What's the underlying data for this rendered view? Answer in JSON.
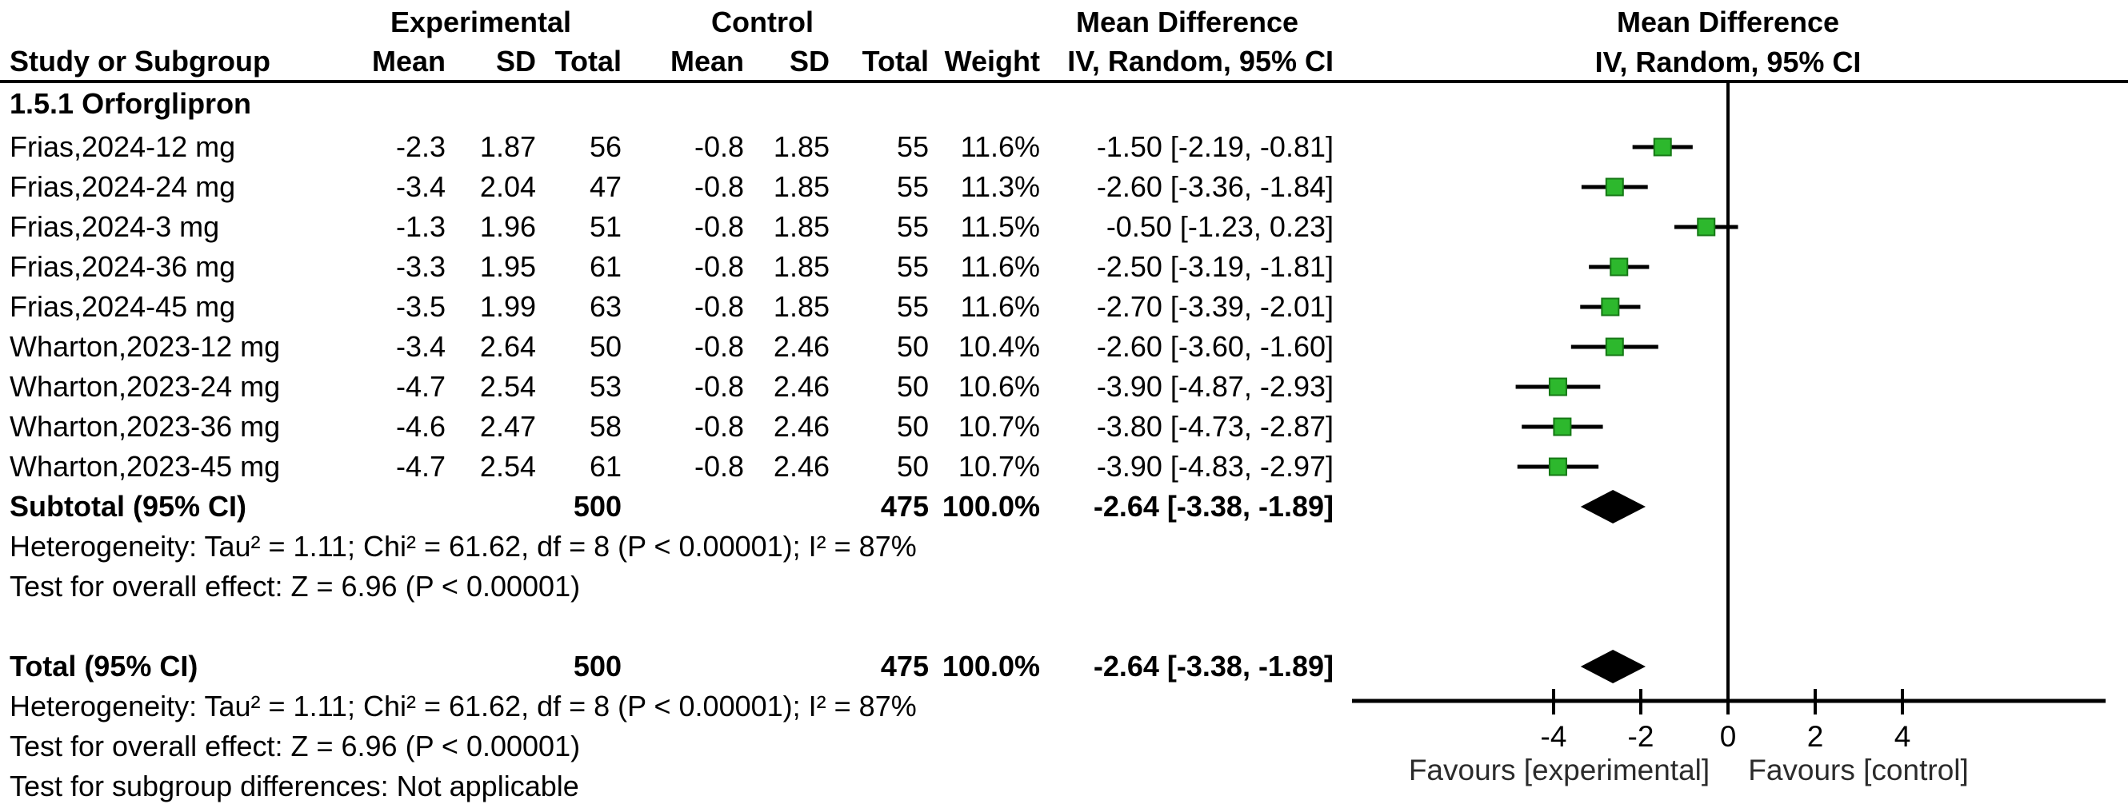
{
  "header": {
    "group_experimental": "Experimental",
    "group_control": "Control",
    "group_md_table": "Mean Difference",
    "group_md_plot": "Mean Difference",
    "col_study": "Study or Subgroup",
    "col_exp_mean": "Mean",
    "col_exp_sd": "SD",
    "col_exp_total": "Total",
    "col_ctl_mean": "Mean",
    "col_ctl_sd": "SD",
    "col_ctl_total": "Total",
    "col_weight": "Weight",
    "col_ci_table": "IV, Random, 95% CI",
    "col_ci_plot": "IV, Random, 95% CI"
  },
  "subgroup_label": "1.5.1 Orforglipron",
  "studies": [
    {
      "name": "Frias,2024-12 mg",
      "exp_mean": "-2.3",
      "exp_sd": "1.87",
      "exp_total": "56",
      "ctl_mean": "-0.8",
      "ctl_sd": "1.85",
      "ctl_total": "55",
      "weight": "11.6%",
      "ci_text": "-1.50 [-2.19, -0.81]"
    },
    {
      "name": "Frias,2024-24 mg",
      "exp_mean": "-3.4",
      "exp_sd": "2.04",
      "exp_total": "47",
      "ctl_mean": "-0.8",
      "ctl_sd": "1.85",
      "ctl_total": "55",
      "weight": "11.3%",
      "ci_text": "-2.60 [-3.36, -1.84]"
    },
    {
      "name": "Frias,2024-3 mg",
      "exp_mean": "-1.3",
      "exp_sd": "1.96",
      "exp_total": "51",
      "ctl_mean": "-0.8",
      "ctl_sd": "1.85",
      "ctl_total": "55",
      "weight": "11.5%",
      "ci_text": "-0.50 [-1.23, 0.23]"
    },
    {
      "name": "Frias,2024-36 mg",
      "exp_mean": "-3.3",
      "exp_sd": "1.95",
      "exp_total": "61",
      "ctl_mean": "-0.8",
      "ctl_sd": "1.85",
      "ctl_total": "55",
      "weight": "11.6%",
      "ci_text": "-2.50 [-3.19, -1.81]"
    },
    {
      "name": "Frias,2024-45 mg",
      "exp_mean": "-3.5",
      "exp_sd": "1.99",
      "exp_total": "63",
      "ctl_mean": "-0.8",
      "ctl_sd": "1.85",
      "ctl_total": "55",
      "weight": "11.6%",
      "ci_text": "-2.70 [-3.39, -2.01]"
    },
    {
      "name": "Wharton,2023-12 mg",
      "exp_mean": "-3.4",
      "exp_sd": "2.64",
      "exp_total": "50",
      "ctl_mean": "-0.8",
      "ctl_sd": "2.46",
      "ctl_total": "50",
      "weight": "10.4%",
      "ci_text": "-2.60 [-3.60, -1.60]"
    },
    {
      "name": "Wharton,2023-24 mg",
      "exp_mean": "-4.7",
      "exp_sd": "2.54",
      "exp_total": "53",
      "ctl_mean": "-0.8",
      "ctl_sd": "2.46",
      "ctl_total": "50",
      "weight": "10.6%",
      "ci_text": "-3.90 [-4.87, -2.93]"
    },
    {
      "name": "Wharton,2023-36 mg",
      "exp_mean": "-4.6",
      "exp_sd": "2.47",
      "exp_total": "58",
      "ctl_mean": "-0.8",
      "ctl_sd": "2.46",
      "ctl_total": "50",
      "weight": "10.7%",
      "ci_text": "-3.80 [-4.73, -2.87]"
    },
    {
      "name": "Wharton,2023-45 mg",
      "exp_mean": "-4.7",
      "exp_sd": "2.54",
      "exp_total": "61",
      "ctl_mean": "-0.8",
      "ctl_sd": "2.46",
      "ctl_total": "50",
      "weight": "10.7%",
      "ci_text": "-3.90 [-4.83, -2.97]"
    }
  ],
  "subtotal": {
    "label": "Subtotal (95% CI)",
    "exp_total": "500",
    "ctl_total": "475",
    "weight": "100.0%",
    "ci_text": "-2.64 [-3.38, -1.89]"
  },
  "subgroup_footnotes": {
    "heterogeneity": "Heterogeneity: Tau² = 1.11; Chi² = 61.62, df = 8 (P < 0.00001); I² = 87%",
    "overall_effect": "Test for overall effect: Z = 6.96 (P < 0.00001)"
  },
  "total": {
    "label": "Total (95% CI)",
    "exp_total": "500",
    "ctl_total": "475",
    "weight": "100.0%",
    "ci_text": "-2.64 [-3.38, -1.89]"
  },
  "total_footnotes": {
    "heterogeneity": "Heterogeneity: Tau² = 1.11; Chi² = 61.62, df = 8 (P < 0.00001); I² = 87%",
    "overall_effect": "Test for overall effect: Z = 6.96 (P < 0.00001)",
    "subgroup_differences": "Test for subgroup differences: Not applicable"
  },
  "chart_data": {
    "type": "scatter",
    "subtype": "forest-plot",
    "title": "Mean Difference IV, Random, 95% CI",
    "x_axis": {
      "ticks": [
        -4,
        -2,
        0,
        2,
        4
      ],
      "range": [
        -8.6,
        8.6
      ],
      "zero_line": 0,
      "favours_left": "Favours [experimental]",
      "favours_right": "Favours [control]"
    },
    "studies": [
      {
        "label": "Frias,2024-12 mg",
        "md": -1.5,
        "lo": -2.19,
        "hi": -0.81,
        "weight": 11.6
      },
      {
        "label": "Frias,2024-24 mg",
        "md": -2.6,
        "lo": -3.36,
        "hi": -1.84,
        "weight": 11.3
      },
      {
        "label": "Frias,2024-3 mg",
        "md": -0.5,
        "lo": -1.23,
        "hi": 0.23,
        "weight": 11.5
      },
      {
        "label": "Frias,2024-36 mg",
        "md": -2.5,
        "lo": -3.19,
        "hi": -1.81,
        "weight": 11.6
      },
      {
        "label": "Frias,2024-45 mg",
        "md": -2.7,
        "lo": -3.39,
        "hi": -2.01,
        "weight": 11.6
      },
      {
        "label": "Wharton,2023-12 mg",
        "md": -2.6,
        "lo": -3.6,
        "hi": -1.6,
        "weight": 10.4
      },
      {
        "label": "Wharton,2023-24 mg",
        "md": -3.9,
        "lo": -4.87,
        "hi": -2.93,
        "weight": 10.6
      },
      {
        "label": "Wharton,2023-36 mg",
        "md": -3.8,
        "lo": -4.73,
        "hi": -2.87,
        "weight": 10.7
      },
      {
        "label": "Wharton,2023-45 mg",
        "md": -3.9,
        "lo": -4.83,
        "hi": -2.97,
        "weight": 10.7
      }
    ],
    "diamonds": [
      {
        "label": "Subtotal (95% CI)",
        "md": -2.64,
        "lo": -3.38,
        "hi": -1.89
      },
      {
        "label": "Total (95% CI)",
        "md": -2.64,
        "lo": -3.38,
        "hi": -1.89
      }
    ],
    "marker_color": "#2DB82D",
    "marker_edge_color": "#157815",
    "diamond_color": "#000000",
    "line_color": "#000000"
  }
}
